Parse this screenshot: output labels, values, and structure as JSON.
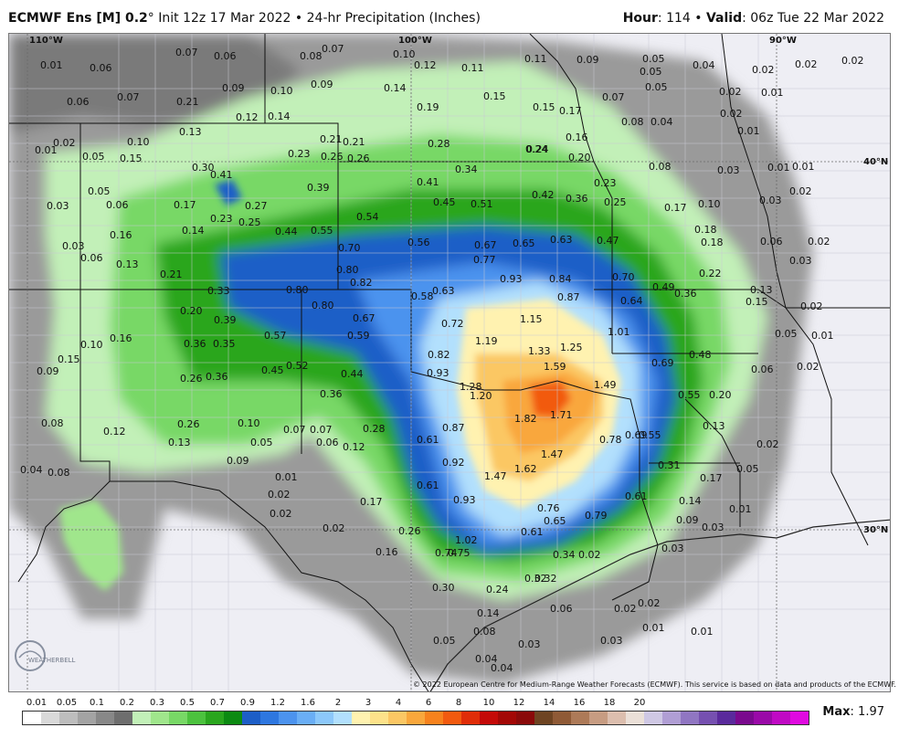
{
  "header": {
    "model": "ECMWF Ens [M] 0.2",
    "degree": "°",
    "init": " Init 12z 17 Mar 2022",
    "bullet": " • ",
    "product": "24-hr Precipitation (Inches)",
    "hour_label": "Hour",
    "hour_value": ": 114 • ",
    "valid_label": "Valid",
    "valid_value": ": 06z Tue 22 Mar 2022"
  },
  "graticule": {
    "lon_110": "110°W",
    "lon_100": "100°W",
    "lon_90": "90°W",
    "lat_40": "40°N",
    "lat_30": "30°N"
  },
  "map_values": [
    "0.01",
    "0.06",
    "0.07",
    "0.06",
    "0.08",
    "0.07",
    "0.10",
    "0.12",
    "0.11",
    "0.11",
    "0.09",
    "0.05",
    "0.05",
    "0.04",
    "0.02",
    "0.02",
    "0.02",
    "0.06",
    "0.07",
    "0.21",
    "0.09",
    "0.10",
    "0.09",
    "0.14",
    "0.15",
    "0.07",
    "0.05",
    "0.02",
    "0.01",
    "0.12",
    "0.14",
    "0.19",
    "0.15",
    "0.17",
    "0.08",
    "0.04",
    "0.02",
    "0.01",
    "0.02",
    "0.10",
    "0.13",
    "0.21",
    "0.21",
    "0.28",
    "0.24",
    "0.16",
    "0.01",
    "0.05",
    "0.15",
    "0.23",
    "0.26",
    "0.26",
    "0.24",
    "0.20",
    "0.08",
    "0.03",
    "0.01",
    "0.01",
    "0.30",
    "0.41",
    "0.34",
    "0.23",
    "0.02",
    "0.05",
    "0.39",
    "0.41",
    "0.42",
    "0.36",
    "0.03",
    "0.03",
    "0.06",
    "0.17",
    "0.27",
    "0.45",
    "0.51",
    "0.25",
    "0.17",
    "0.10",
    "0.23",
    "0.25",
    "0.54",
    "0.18",
    "0.16",
    "0.14",
    "0.44",
    "0.55",
    "0.56",
    "0.67",
    "0.65",
    "0.63",
    "0.47",
    "0.18",
    "0.06",
    "0.02",
    "0.03",
    "0.70",
    "0.77",
    "0.06",
    "0.13",
    "0.80",
    "0.03",
    "0.21",
    "0.82",
    "0.93",
    "0.84",
    "0.70",
    "0.22",
    "0.33",
    "0.80",
    "0.58",
    "0.63",
    "0.87",
    "0.64",
    "0.49",
    "0.36",
    "0.13",
    "0.15",
    "0.20",
    "0.80",
    "0.02",
    "0.39",
    "0.67",
    "0.72",
    "1.15",
    "1.01",
    "0.05",
    "0.01",
    "0.16",
    "0.57",
    "0.59",
    "1.19",
    "1.33",
    "1.25",
    "0.10",
    "0.36",
    "0.35",
    "0.82",
    "0.48",
    "0.06",
    "0.02",
    "0.15",
    "0.45",
    "0.52",
    "1.59",
    "0.09",
    "0.26",
    "0.36",
    "0.44",
    "0.93",
    "1.28",
    "0.69",
    "0.36",
    "1.20",
    "1.49",
    "0.55",
    "0.20",
    "0.08",
    "0.26",
    "1.82",
    "1.71",
    "0.12",
    "0.10",
    "0.07",
    "0.07",
    "0.28",
    "0.87",
    "0.78",
    "0.69",
    "0.55",
    "0.13",
    "0.13",
    "0.05",
    "0.06",
    "0.12",
    "0.61",
    "1.47",
    "0.04",
    "0.08",
    "0.09",
    "0.92",
    "0.31",
    "0.02",
    "0.01",
    "1.47",
    "1.62",
    "0.17",
    "0.05",
    "0.02",
    "0.61",
    "0.61",
    "0.17",
    "0.93",
    "0.76",
    "0.14",
    "0.01",
    "0.02",
    "0.65",
    "0.79",
    "0.09",
    "0.02",
    "0.26",
    "0.61",
    "0.03",
    "1.02",
    "0.03",
    "0.16",
    "0.74",
    "0.75",
    "0.34",
    "0.32",
    "0.02",
    "0.30",
    "0.24",
    "0.32",
    "0.14",
    "0.06",
    "0.02",
    "0.02",
    "0.08",
    "0.01",
    "0.01",
    "0.05",
    "0.03",
    "0.03",
    "0.04",
    "0.04"
  ],
  "copyright": "© 2022 European Centre for Medium-Range Weather Forecasts (ECMWF). This service is based on data and products of the ECMWF.",
  "legend": {
    "colors": [
      "#ffffff",
      "#d9d9d9",
      "#bdbdbd",
      "#a3a3a3",
      "#888888",
      "#6e6e6e",
      "#c2f0b8",
      "#a0e68c",
      "#78d866",
      "#4cc23e",
      "#2aa61e",
      "#0c8a12",
      "#1d5ec7",
      "#2e77e0",
      "#4c93ee",
      "#6aaef5",
      "#8cc8fa",
      "#b2e0fd",
      "#fff2b0",
      "#fde28a",
      "#fbc764",
      "#f9a73c",
      "#f7821d",
      "#f25a0f",
      "#e02d08",
      "#c40a08",
      "#a30806",
      "#8a0a0a",
      "#6e4422",
      "#8f5a36",
      "#ad7a58",
      "#c79c82",
      "#dcbeae",
      "#ebe0d8",
      "#cfc8e4",
      "#b09ed4",
      "#9076c2",
      "#7650b0",
      "#5a2a9c",
      "#7a0a8e",
      "#9a0aa8",
      "#c00ac4",
      "#e00ae0"
    ],
    "ticks": [
      "0.01",
      "0.05",
      "0.1",
      "0.2",
      "0.3",
      "0.5",
      "0.7",
      "0.9",
      "1.2",
      "1.6",
      "2",
      "3",
      "4",
      "6",
      "8",
      "10",
      "12",
      "14",
      "16",
      "18",
      "20"
    ]
  },
  "max_label": "Max",
  "max_value": ": 1.97",
  "logo_text": "WEATHERBELL"
}
